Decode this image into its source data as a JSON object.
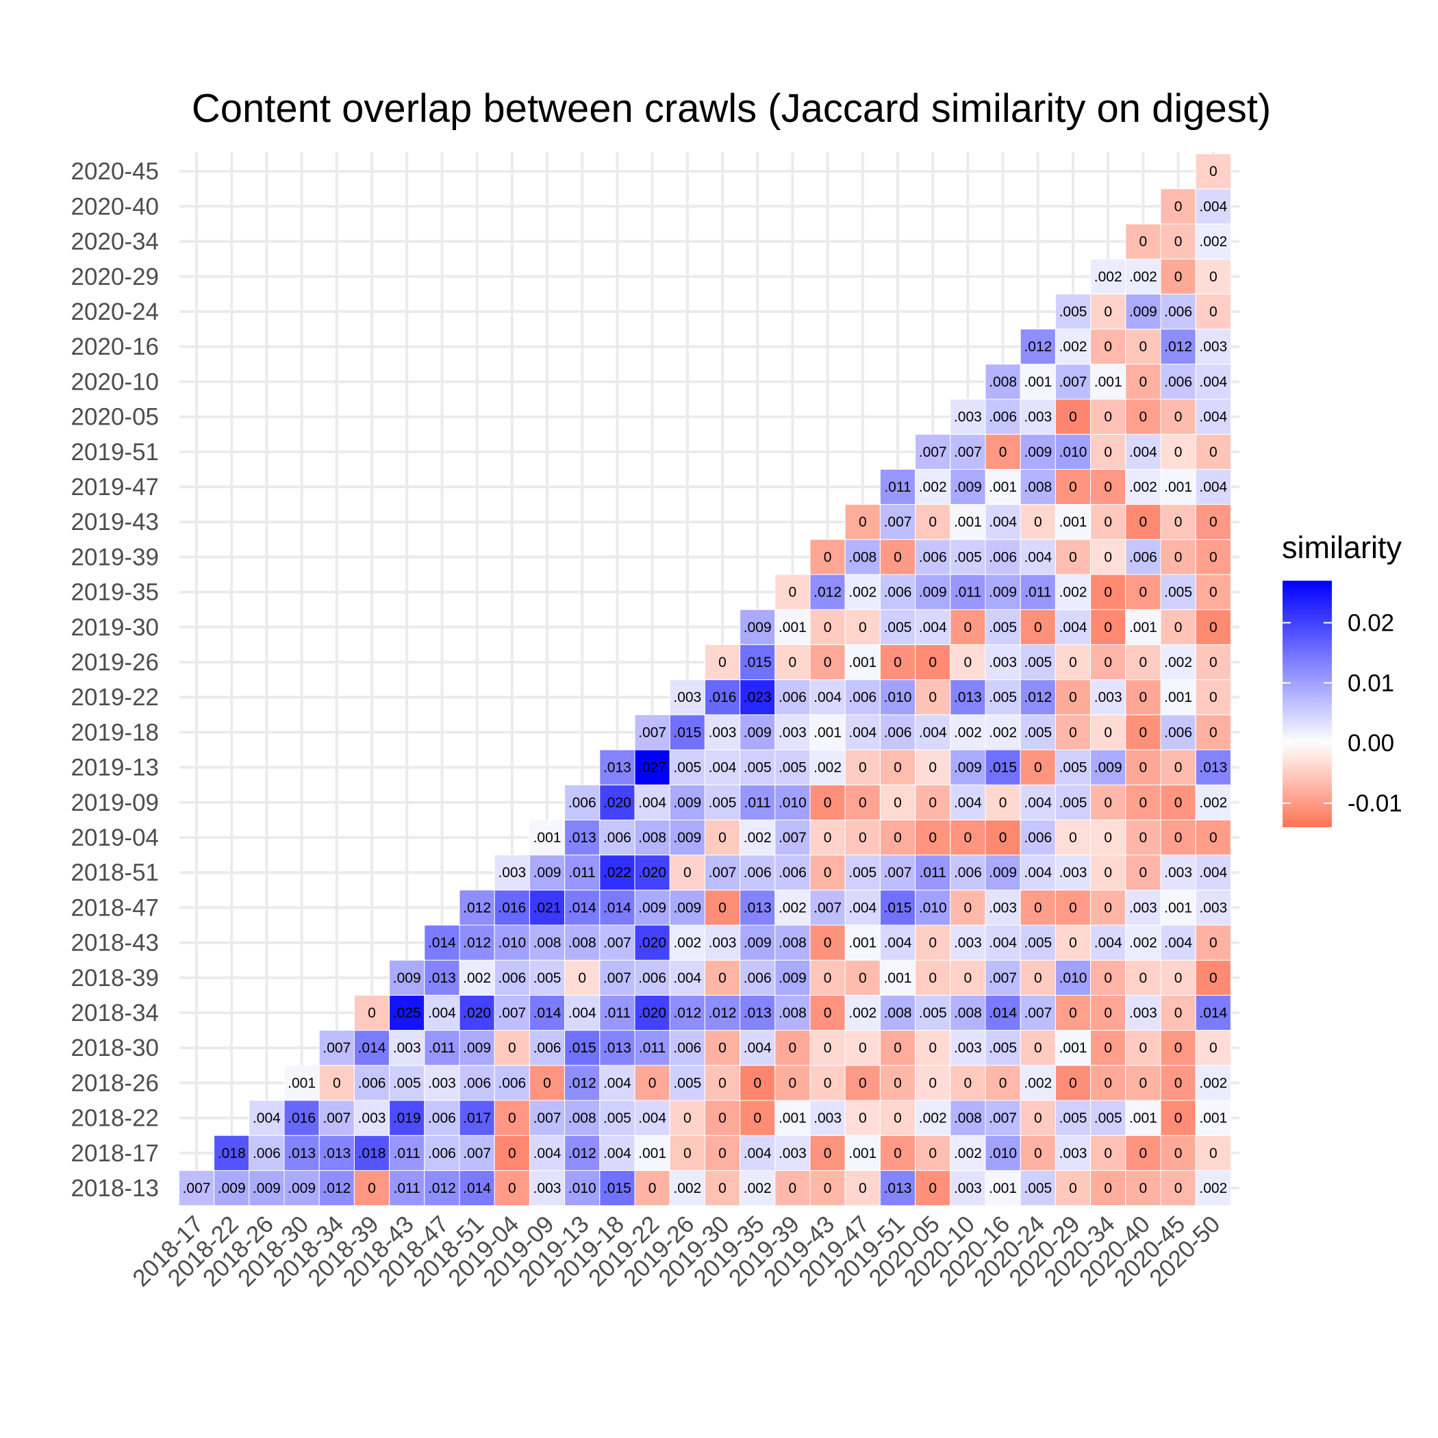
{
  "chart_data": {
    "type": "heatmap",
    "title": "Content overlap between crawls (Jaccard similarity on digest)",
    "x_categories": [
      "2018-17",
      "2018-22",
      "2018-26",
      "2018-30",
      "2018-34",
      "2018-39",
      "2018-43",
      "2018-47",
      "2018-51",
      "2019-04",
      "2019-09",
      "2019-13",
      "2019-18",
      "2019-22",
      "2019-26",
      "2019-30",
      "2019-35",
      "2019-39",
      "2019-43",
      "2019-47",
      "2019-51",
      "2020-05",
      "2020-10",
      "2020-16",
      "2020-24",
      "2020-29",
      "2020-34",
      "2020-40",
      "2020-45",
      "2020-50"
    ],
    "y_categories": [
      "2018-13",
      "2018-17",
      "2018-22",
      "2018-26",
      "2018-30",
      "2018-34",
      "2018-39",
      "2018-43",
      "2018-47",
      "2018-51",
      "2019-04",
      "2019-09",
      "2019-13",
      "2019-18",
      "2019-22",
      "2019-26",
      "2019-30",
      "2019-35",
      "2019-39",
      "2019-43",
      "2019-47",
      "2019-51",
      "2020-05",
      "2020-10",
      "2020-16",
      "2020-24",
      "2020-29",
      "2020-34",
      "2020-40",
      "2020-45"
    ],
    "rows": [
      [
        ".007",
        ".009",
        ".009",
        ".009",
        ".012",
        "0",
        ".011",
        ".012",
        ".014",
        "0",
        ".003",
        ".010",
        ".015",
        "0",
        ".002",
        "0",
        ".002",
        "0",
        "0",
        "0",
        ".013",
        "0",
        ".003",
        ".001",
        ".005",
        "0",
        "0",
        "0",
        "0",
        ".002"
      ],
      [
        ".018",
        ".006",
        ".013",
        ".013",
        ".018",
        ".011",
        ".006",
        ".007",
        "0",
        ".004",
        ".012",
        ".004",
        ".001",
        "0",
        "0",
        ".004",
        ".003",
        "0",
        ".001",
        "0",
        "0",
        ".002",
        ".010",
        "0",
        ".003",
        "0",
        "0",
        "0",
        "0"
      ],
      [
        ".004",
        ".016",
        ".007",
        ".003",
        ".019",
        ".006",
        ".017",
        "0",
        ".007",
        ".008",
        ".005",
        ".004",
        "0",
        "0",
        "0",
        ".001",
        ".003",
        "0",
        "0",
        ".002",
        ".008",
        ".007",
        "0",
        ".005",
        ".005",
        ".001",
        "0",
        ".001"
      ],
      [
        ".001",
        "0",
        ".006",
        ".005",
        ".003",
        ".006",
        ".006",
        "0",
        ".012",
        ".004",
        "0",
        ".005",
        "0",
        "0",
        "0",
        "0",
        "0",
        "0",
        "0",
        "0",
        "0",
        ".002",
        "0",
        "0",
        "0",
        "0",
        ".002"
      ],
      [
        ".007",
        ".014",
        ".003",
        ".011",
        ".009",
        "0",
        ".006",
        ".015",
        ".013",
        ".011",
        ".006",
        "0",
        ".004",
        "0",
        "0",
        "0",
        "0",
        "0",
        ".003",
        ".005",
        "0",
        ".001",
        "0",
        "0",
        "0",
        "0"
      ],
      [
        "0",
        ".025",
        ".004",
        ".020",
        ".007",
        ".014",
        ".004",
        ".011",
        ".020",
        ".012",
        ".012",
        ".013",
        ".008",
        "0",
        ".002",
        ".008",
        ".005",
        ".008",
        ".014",
        ".007",
        "0",
        "0",
        ".003",
        "0",
        ".014"
      ],
      [
        ".009",
        ".013",
        ".002",
        ".006",
        ".005",
        "0",
        ".007",
        ".006",
        ".004",
        "0",
        ".006",
        ".009",
        "0",
        "0",
        ".001",
        "0",
        "0",
        ".007",
        "0",
        ".010",
        "0",
        "0",
        "0",
        "0"
      ],
      [
        ".014",
        ".012",
        ".010",
        ".008",
        ".008",
        ".007",
        ".020",
        ".002",
        ".003",
        ".009",
        ".008",
        "0",
        ".001",
        ".004",
        "0",
        ".003",
        ".004",
        ".005",
        "0",
        ".004",
        ".002",
        ".004",
        "0"
      ],
      [
        ".012",
        ".016",
        ".021",
        ".014",
        ".014",
        ".009",
        ".009",
        "0",
        ".013",
        ".002",
        ".007",
        ".004",
        ".015",
        ".010",
        "0",
        ".003",
        "0",
        "0",
        "0",
        ".003",
        ".001",
        ".003"
      ],
      [
        ".003",
        ".009",
        ".011",
        ".022",
        ".020",
        "0",
        ".007",
        ".006",
        ".006",
        "0",
        ".005",
        ".007",
        ".011",
        ".006",
        ".009",
        ".004",
        ".003",
        "0",
        "0",
        ".003",
        ".004"
      ],
      [
        ".001",
        ".013",
        ".006",
        ".008",
        ".009",
        "0",
        ".002",
        ".007",
        "0",
        "0",
        "0",
        "0",
        "0",
        "0",
        ".006",
        "0",
        "0",
        "0",
        "0",
        "0"
      ],
      [
        ".006",
        ".020",
        ".004",
        ".009",
        ".005",
        ".011",
        ".010",
        "0",
        "0",
        "0",
        "0",
        ".004",
        "0",
        ".004",
        ".005",
        "0",
        "0",
        "0",
        ".002"
      ],
      [
        ".013",
        ".027",
        ".005",
        ".004",
        ".005",
        ".005",
        ".002",
        "0",
        "0",
        "0",
        ".009",
        ".015",
        "0",
        ".005",
        ".009",
        "0",
        "0",
        ".013"
      ],
      [
        ".007",
        ".015",
        ".003",
        ".009",
        ".003",
        ".001",
        ".004",
        ".006",
        ".004",
        ".002",
        ".002",
        ".005",
        "0",
        "0",
        "0",
        ".006",
        "0"
      ],
      [
        ".003",
        ".016",
        ".023",
        ".006",
        ".004",
        ".006",
        ".010",
        "0",
        ".013",
        ".005",
        ".012",
        "0",
        ".003",
        "0",
        ".001",
        "0"
      ],
      [
        "0",
        ".015",
        "0",
        "0",
        ".001",
        "0",
        "0",
        "0",
        ".003",
        ".005",
        "0",
        "0",
        "0",
        ".002",
        "0"
      ],
      [
        ".009",
        ".001",
        "0",
        "0",
        ".005",
        ".004",
        "0",
        ".005",
        "0",
        ".004",
        "0",
        ".001",
        "0",
        "0"
      ],
      [
        "0",
        ".012",
        ".002",
        ".006",
        ".009",
        ".011",
        ".009",
        ".011",
        ".002",
        "0",
        "0",
        ".005",
        "0"
      ],
      [
        "0",
        ".008",
        "0",
        ".006",
        ".005",
        ".006",
        ".004",
        "0",
        "0",
        ".006",
        "0",
        "0"
      ],
      [
        "0",
        ".007",
        "0",
        ".001",
        ".004",
        "0",
        ".001",
        "0",
        "0",
        "0",
        "0"
      ],
      [
        ".011",
        ".002",
        ".009",
        ".001",
        ".008",
        "0",
        "0",
        ".002",
        ".001",
        ".004"
      ],
      [
        ".007",
        ".007",
        "0",
        ".009",
        ".010",
        "0",
        ".004",
        "0",
        "0"
      ],
      [
        ".003",
        ".006",
        ".003",
        "0",
        "0",
        "0",
        "0",
        ".004"
      ],
      [
        ".008",
        ".001",
        ".007",
        ".001",
        "0",
        ".006",
        ".004"
      ],
      [
        ".012",
        ".002",
        "0",
        "0",
        ".012",
        ".003"
      ],
      [
        ".005",
        "0",
        ".009",
        ".006",
        "0"
      ],
      [
        ".002",
        ".002",
        "0",
        "0"
      ],
      [
        "0",
        "0",
        ".002"
      ],
      [
        "0",
        ".004"
      ],
      [
        "0"
      ]
    ],
    "legend": {
      "title": "similarity",
      "ticks": [
        0.02,
        0.01,
        0.0,
        -0.01
      ],
      "tick_labels": [
        "0.02",
        "0.01",
        "0.00",
        "-0.01"
      ],
      "range": [
        -0.014,
        0.027
      ],
      "colors": {
        "low": "#ff7256",
        "mid": "#ffffff",
        "high": "#0000ff"
      },
      "position": "right"
    },
    "grid": true
  }
}
